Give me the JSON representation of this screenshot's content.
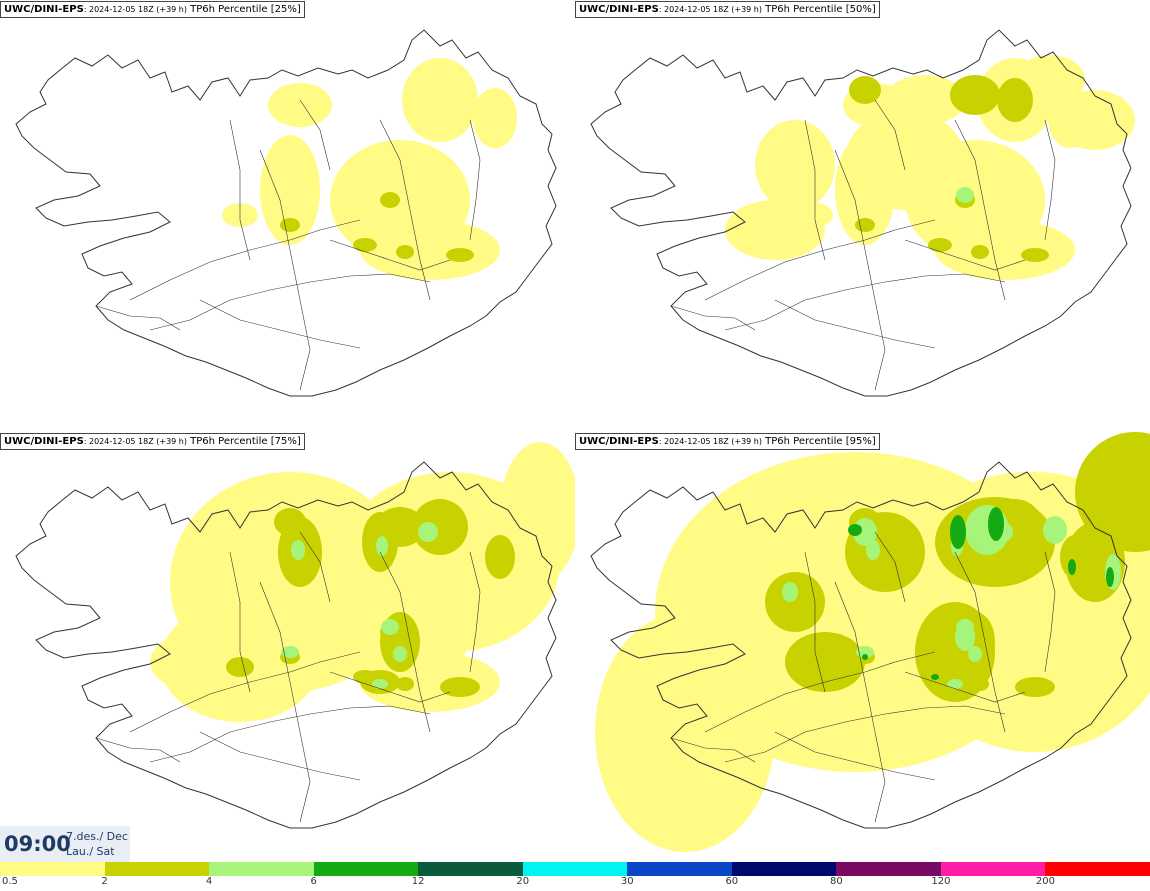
{
  "panels": [
    {
      "model": "UWC/DINI-EPS",
      "run": ": 2024-12-05 18Z (+39 h)",
      "field": " TP6h Percentile [25%]",
      "level": 1
    },
    {
      "model": "UWC/DINI-EPS",
      "run": ": 2024-12-05 18Z (+39 h)",
      "field": " TP6h Percentile [50%]",
      "level": 2
    },
    {
      "model": "UWC/DINI-EPS",
      "run": ": 2024-12-05 18Z (+39 h)",
      "field": " TP6h Percentile [75%]",
      "level": 3
    },
    {
      "model": "UWC/DINI-EPS",
      "run": ": 2024-12-05 18Z (+39 h)",
      "field": " TP6h Percentile [95%]",
      "level": 4
    }
  ],
  "valid_time": {
    "time": "09:00",
    "date_line1": "7.des./ Dec",
    "date_line2": "Lau./ Sat"
  },
  "legend": {
    "colors": [
      "#fffb85",
      "#c8d200",
      "#a6f57a",
      "#14aa14",
      "#0a5a3c",
      "#00f5f0",
      "#0a46c8",
      "#000a6e",
      "#780a64",
      "#ff1eaa",
      "#ff0000"
    ],
    "labels": [
      "0.5",
      "2",
      "4",
      "6",
      "12",
      "20",
      "30",
      "60",
      "80",
      "120",
      "200"
    ]
  },
  "map_colors": {
    "outline": "#333333",
    "light": "#fffb85",
    "medium": "#c8d200",
    "green_light": "#a6f57a",
    "green_dark": "#14aa14"
  }
}
